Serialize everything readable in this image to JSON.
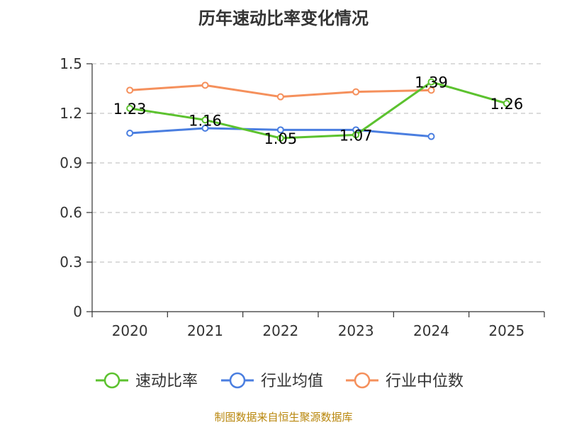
{
  "chart_data": {
    "type": "line",
    "title": "历年速动比率变化情况",
    "categories": [
      "2020",
      "2021",
      "2022",
      "2023",
      "2024",
      "2025"
    ],
    "y_ticks": [
      "0",
      "0.3",
      "0.6",
      "0.9",
      "1.2",
      "1.5"
    ],
    "ylim": [
      0,
      1.5
    ],
    "grid": true,
    "legend_position": "bottom",
    "series": [
      {
        "name": "速动比率",
        "color": "#5cc22f",
        "values": [
          1.23,
          1.16,
          1.05,
          1.07,
          1.39,
          1.26
        ],
        "labels": [
          "1.23",
          "1.16",
          "1.05",
          "1.07",
          "1.39",
          "1.26"
        ]
      },
      {
        "name": "行业均值",
        "color": "#4a7ee0",
        "values": [
          1.08,
          1.11,
          1.1,
          1.1,
          1.06,
          null
        ]
      },
      {
        "name": "行业中位数",
        "color": "#f5905c",
        "values": [
          1.34,
          1.37,
          1.3,
          1.33,
          1.34,
          null
        ]
      }
    ]
  },
  "source_note": "制图数据来自恒生聚源数据库"
}
